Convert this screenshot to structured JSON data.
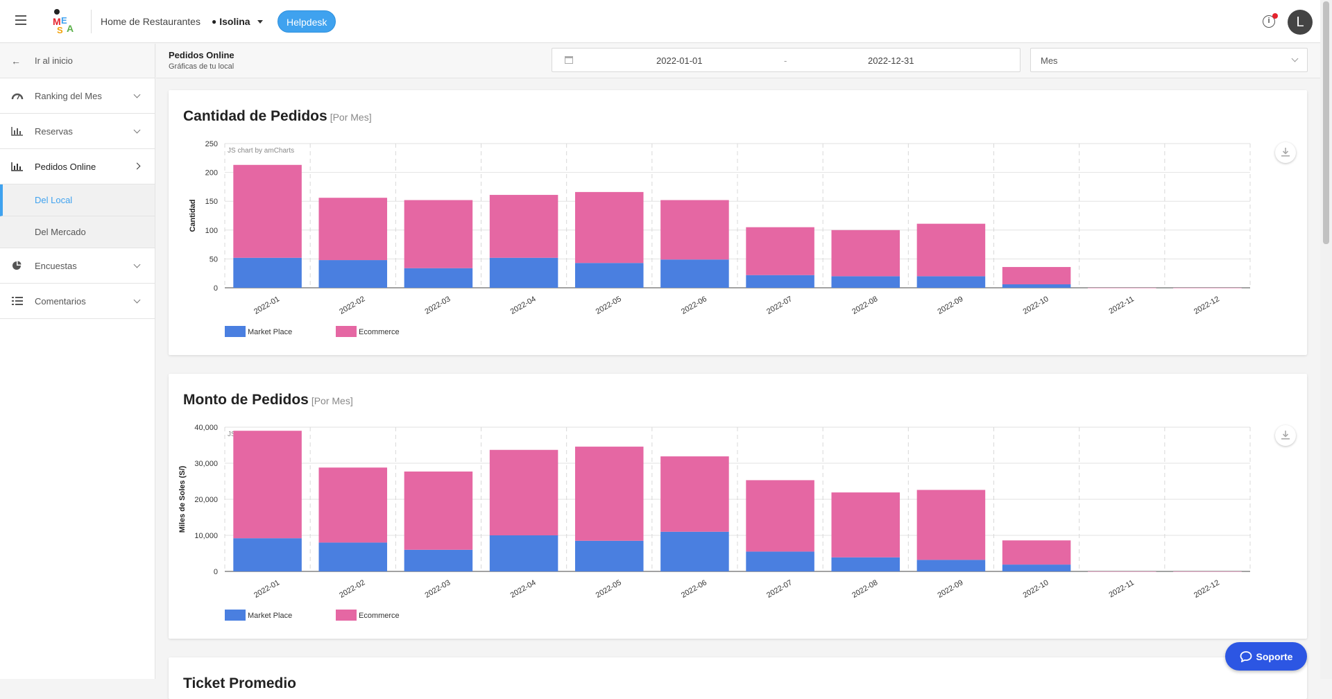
{
  "topbar": {
    "home_link": "Home de Restaurantes",
    "location": "Isolina",
    "helpdesk": "Helpdesk",
    "info_glyph": "i",
    "avatar_initial": "L",
    "logo_text": "MESA"
  },
  "sidebar": {
    "back_label": "Ir al inicio",
    "items": [
      {
        "label": "Ranking del Mes",
        "icon": "dashboard-icon"
      },
      {
        "label": "Reservas",
        "icon": "bar-chart-icon"
      },
      {
        "label": "Pedidos Online",
        "icon": "bar-chart-icon"
      },
      {
        "label": "Encuestas",
        "icon": "pie-chart-icon"
      },
      {
        "label": "Comentarios",
        "icon": "list-icon"
      }
    ],
    "subitems": [
      {
        "label": "Del Local"
      },
      {
        "label": "Del Mercado"
      }
    ]
  },
  "subheader": {
    "title": "Pedidos Online",
    "subtitle": "Gráficas de tu local",
    "date_from": "2022-01-01",
    "date_sep": "-",
    "date_to": "2022-12-31",
    "period": "Mes"
  },
  "charts": {
    "card1_title": "Cantidad de Pedidos",
    "card1_suffix": "[Por Mes]",
    "card2_title": "Monto de Pedidos",
    "card2_suffix": "[Por Mes]",
    "card3_title": "Ticket Promedio",
    "watermark": "JS chart by amCharts"
  },
  "soporte": "Soporte",
  "colors": {
    "market_place": "#4a7fe0",
    "ecommerce": "#e567a3",
    "accent": "#3fa2ef",
    "soporte": "#2c56e3"
  },
  "chart_data": [
    {
      "type": "bar",
      "stacked": true,
      "title": "Cantidad de Pedidos",
      "ylabel": "Cantidad",
      "ylim": [
        0,
        250
      ],
      "yticks": [
        "0",
        "50",
        "100",
        "150",
        "200",
        "250"
      ],
      "categories": [
        "2022-01",
        "2022-02",
        "2022-03",
        "2022-04",
        "2022-05",
        "2022-06",
        "2022-07",
        "2022-08",
        "2022-09",
        "2022-10",
        "2022-11",
        "2022-12"
      ],
      "series": [
        {
          "name": "Market Place",
          "values": [
            52,
            48,
            34,
            52,
            43,
            49,
            22,
            20,
            20,
            6,
            0,
            0
          ]
        },
        {
          "name": "Ecommerce",
          "values": [
            161,
            108,
            118,
            109,
            123,
            103,
            83,
            80,
            91,
            30,
            0,
            0
          ]
        }
      ],
      "legend": "bottom-left",
      "grid": true
    },
    {
      "type": "bar",
      "stacked": true,
      "title": "Monto de Pedidos",
      "ylabel": "Miles de Soles (S/)",
      "ylim": [
        0,
        40000
      ],
      "yticks": [
        "0",
        "10,000",
        "20,000",
        "30,000",
        "40,000"
      ],
      "categories": [
        "2022-01",
        "2022-02",
        "2022-03",
        "2022-04",
        "2022-05",
        "2022-06",
        "2022-07",
        "2022-08",
        "2022-09",
        "2022-10",
        "2022-11",
        "2022-12"
      ],
      "series": [
        {
          "name": "Market Place",
          "values": [
            9200,
            8000,
            6000,
            10000,
            8500,
            11000,
            5500,
            3900,
            3200,
            1900,
            0,
            0
          ]
        },
        {
          "name": "Ecommerce",
          "values": [
            29800,
            20800,
            21700,
            23700,
            26100,
            20900,
            19800,
            18000,
            19400,
            6700,
            0,
            0
          ]
        }
      ],
      "legend": "bottom-left",
      "grid": true
    }
  ]
}
